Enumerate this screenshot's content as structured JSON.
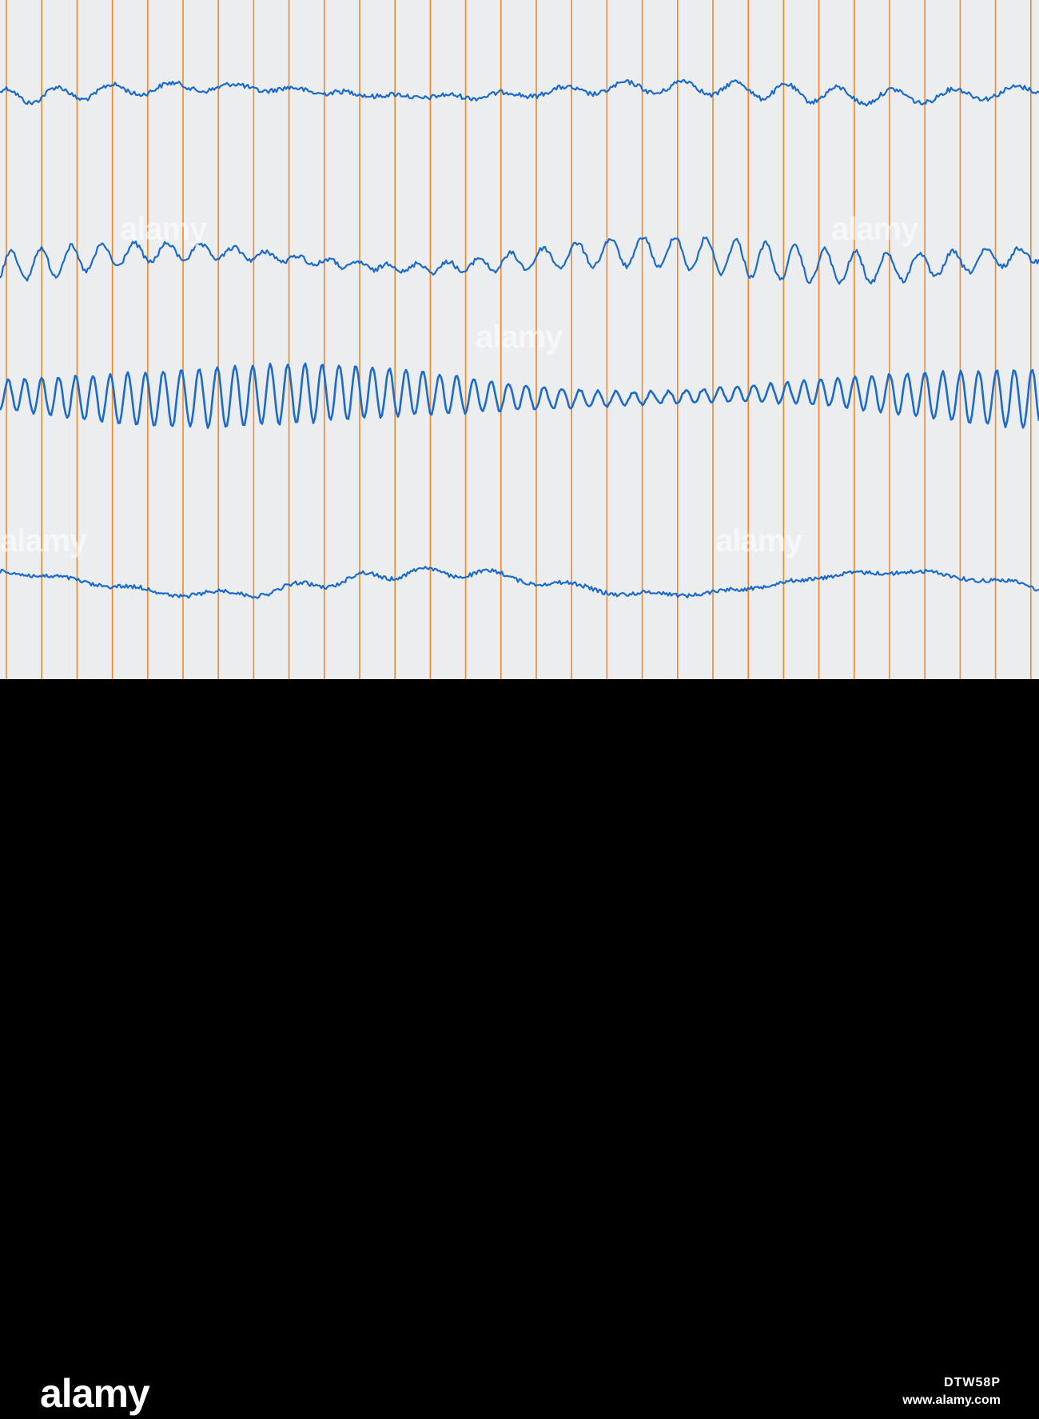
{
  "image": {
    "subject": "eeg-recording-strip",
    "paper_color": "#ecedef",
    "gridline_color": "#f0892a",
    "trace_color": "#1c6bcc",
    "gridline_count": 30,
    "channel_count": 4
  },
  "watermark": {
    "text": "alamy",
    "logo_text": "alamy",
    "image_code": "DTW58P",
    "site": "www.alamy.com"
  }
}
